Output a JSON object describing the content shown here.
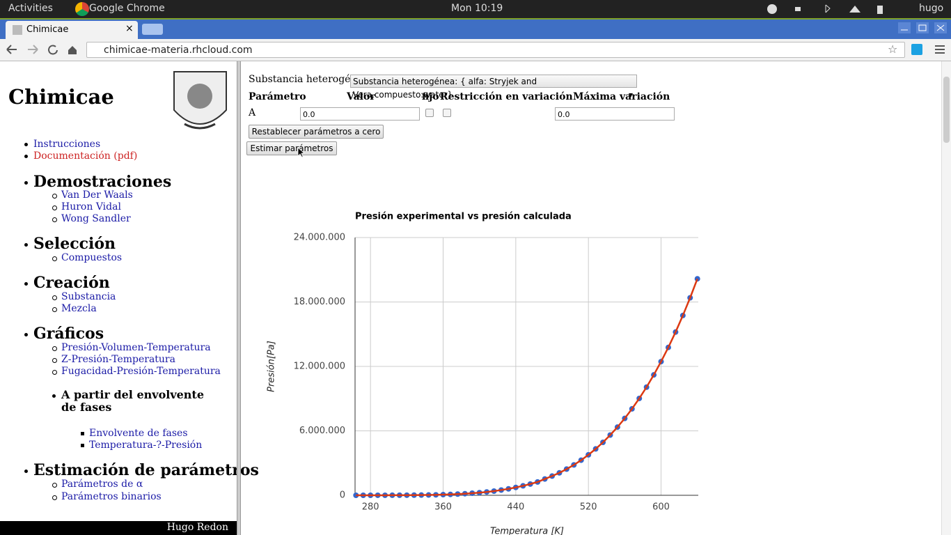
{
  "system_bar": {
    "activities": "Activities",
    "app": "Google Chrome",
    "clock": "Mon 10:19",
    "user": "hugo"
  },
  "browser": {
    "tab_title": "Chimicae",
    "url": "chimicae-materia.rhcloud.com"
  },
  "sidebar": {
    "title": "Chimicae",
    "links": [
      "Instrucciones",
      "Documentación (pdf)"
    ],
    "sections": [
      {
        "heading": "Demostraciones",
        "items": [
          "Van Der Waals",
          "Huron Vidal",
          "Wong Sandler"
        ]
      },
      {
        "heading": "Selección",
        "items": [
          "Compuestos"
        ]
      },
      {
        "heading": "Creación",
        "items": [
          "Substancia",
          "Mezcla"
        ]
      },
      {
        "heading": "Gráficos",
        "items": [
          "Presión-Volumen-Temperatura",
          "Z-Presión-Temperatura",
          "Fugacidad-Presión-Temperatura"
        ],
        "subheading": "A partir del envolvente de fases",
        "subitems": [
          "Envolvente de fases",
          "Temperatura-?-Presión"
        ]
      },
      {
        "heading": "Estimación de parámetros",
        "items": [
          "Parámetros de α",
          "Parámetros binarios"
        ]
      }
    ],
    "footer": "Hugo Redon"
  },
  "form": {
    "label": "Substancia heterogénea",
    "select": "Substancia heterogénea: { alfa: Stryjek and Vera,compuesto:water}",
    "headers": [
      "Parámetro",
      "Valor",
      "fijo",
      "Restricción en variación",
      "Máxima variación"
    ],
    "row": {
      "parameter": "A",
      "value": "0.0",
      "max_variation": "0.0"
    },
    "buttons": [
      "Restablecer parámetros a cero",
      "Estimar parámetros"
    ]
  },
  "chart_data": {
    "type": "line",
    "title": "Presión experimental vs presión calculada",
    "x_label": "Temperatura [K]",
    "y_label": "Presión[Pa]",
    "x": [
      264,
      272,
      280,
      288,
      296,
      304,
      312,
      320,
      328,
      336,
      344,
      352,
      360,
      368,
      376,
      384,
      392,
      400,
      408,
      416,
      424,
      432,
      440,
      448,
      456,
      464,
      472,
      480,
      488,
      496,
      504,
      512,
      520,
      528,
      536,
      544,
      552,
      560,
      568,
      576,
      584,
      592,
      600,
      608,
      616,
      624,
      632,
      640
    ],
    "series": [
      {
        "mode": "markers",
        "color": "#3366cc",
        "values": [
          290,
          530,
          990,
          1700,
          2800,
          4500,
          7200,
          10600,
          15500,
          22300,
          31200,
          43000,
          62000,
          84000,
          113000,
          149000,
          194000,
          246000,
          310000,
          390000,
          490000,
          600000,
          733000,
          880000,
          1050000,
          1240000,
          1520000,
          1790000,
          2090000,
          2440000,
          2830000,
          3270000,
          3770000,
          4320000,
          4930000,
          5610000,
          6350000,
          7160000,
          8050000,
          9020000,
          10070000,
          11210000,
          12450000,
          13770000,
          15200000,
          16740000,
          18390000,
          20160000
        ]
      },
      {
        "mode": "line",
        "color": "#dc3912",
        "values": [
          290,
          530,
          990,
          1700,
          2800,
          4500,
          7200,
          10600,
          15500,
          22300,
          31200,
          43000,
          62000,
          84000,
          113000,
          149000,
          194000,
          246000,
          310000,
          390000,
          490000,
          600000,
          733000,
          880000,
          1050000,
          1240000,
          1520000,
          1790000,
          2090000,
          2440000,
          2830000,
          3270000,
          3770000,
          4320000,
          4930000,
          5610000,
          6350000,
          7160000,
          8050000,
          9020000,
          10070000,
          11210000,
          12450000,
          13770000,
          15200000,
          16740000,
          18390000,
          20160000
        ]
      }
    ],
    "xlim": [
      263,
      641
    ],
    "xticks": [
      280,
      360,
      440,
      520,
      600
    ],
    "ylim": [
      0,
      24000000
    ],
    "yticks": [
      0,
      {
        "value": 6000000,
        "label": "6.000.000"
      },
      {
        "value": 12000000,
        "label": "12.000.000"
      },
      {
        "value": 18000000,
        "label": "18.000.000"
      },
      {
        "value": 24000000,
        "label": "24.000.000"
      }
    ],
    "grid": true
  }
}
